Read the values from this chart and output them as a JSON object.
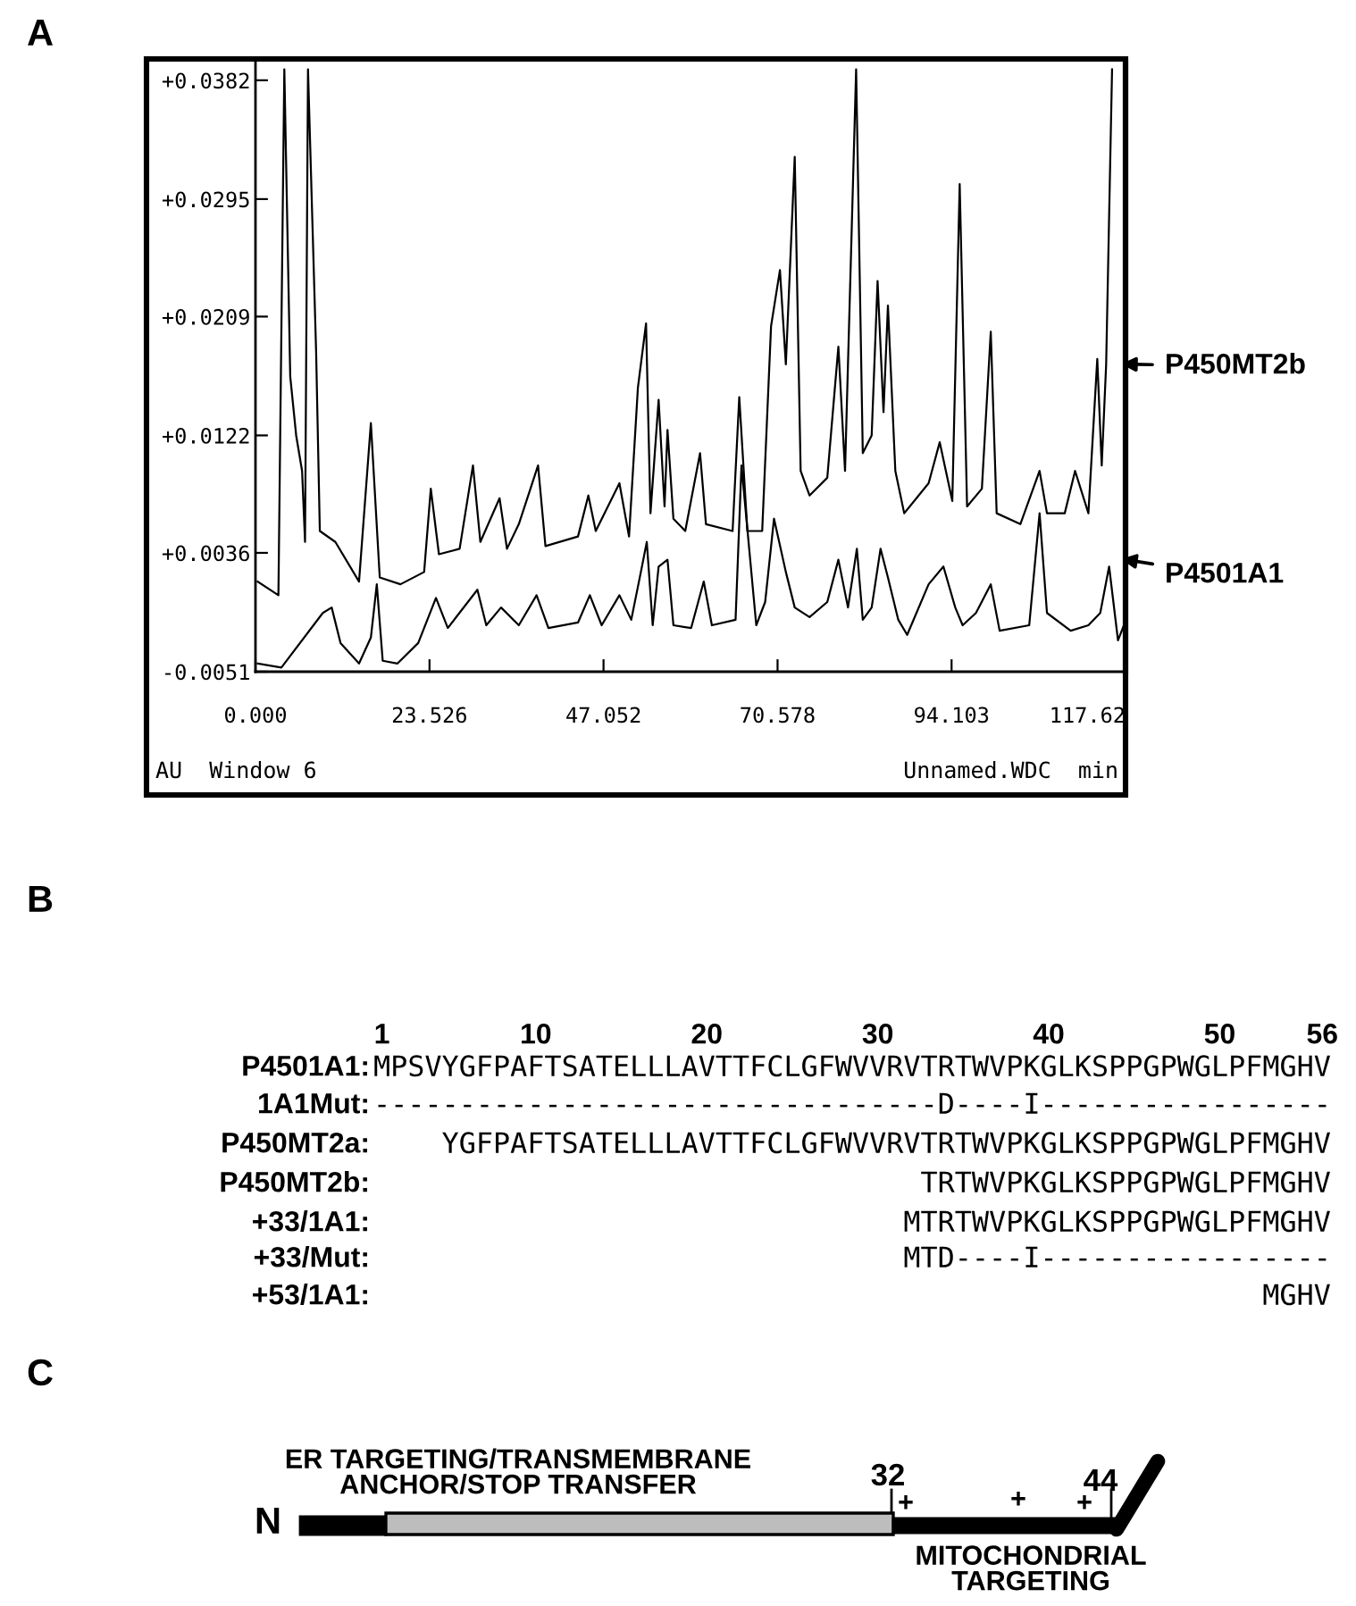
{
  "chart_data": [
    {
      "type": "line",
      "title": "A",
      "legend": "right",
      "xlim": [
        0,
        117.62
      ],
      "ylim": [
        -0.0051,
        0.0395
      ],
      "xticks": [
        {
          "value": 0,
          "label": "0.000"
        },
        23.526,
        47.052,
        70.578,
        94.103,
        117.62
      ],
      "yticks": [
        {
          "value": -0.0051,
          "label": "-0.0051"
        },
        {
          "value": 0.0036,
          "label": "+0.0036"
        },
        {
          "value": 0.0122,
          "label": "+0.0122"
        },
        {
          "value": 0.0209,
          "label": "+0.0209"
        },
        {
          "value": 0.0295,
          "label": "+0.0295"
        },
        {
          "value": 0.0382,
          "label": "+0.0382"
        }
      ],
      "annotations": [
        "AU  Window 6",
        "Unnamed.WDC  min"
      ],
      "series": [
        {
          "name": "P450MT2b",
          "color": "#000000",
          "x": [
            0.3,
            3.1,
            3.9,
            4.7,
            5.5,
            6.3,
            6.7,
            7.1,
            8.2,
            8.7,
            10.8,
            14.0,
            15.6,
            16.8,
            19.6,
            22.8,
            23.7,
            24.8,
            27.6,
            29.4,
            30.4,
            33.0,
            34.0,
            35.6,
            38.2,
            39.2,
            43.6,
            45.0,
            46.0,
            49.2,
            50.5,
            51.7,
            52.8,
            53.4,
            54.5,
            55.3,
            55.7,
            56.5,
            58.1,
            60.1,
            60.9,
            64.5,
            65.4,
            66.5,
            68.5,
            69.7,
            70.9,
            71.7,
            72.9,
            73.7,
            74.9,
            77.3,
            78.8,
            79.7,
            81.2,
            82.1,
            83.3,
            84.1,
            84.9,
            85.5,
            86.5,
            87.7,
            91.0,
            92.5,
            94.2,
            95.2,
            96.2,
            98.2,
            99.4,
            100.2,
            103.4,
            106.0,
            107.0,
            109.4,
            110.8,
            112.6,
            113.8,
            114.4,
            115.0,
            115.8
          ],
          "values": [
            0.0015,
            0.0005,
            0.039,
            0.0165,
            0.0122,
            0.0096,
            0.0044,
            0.039,
            0.0183,
            0.0052,
            0.0044,
            0.0015,
            0.0131,
            0.0018,
            0.0013,
            0.0022,
            0.0083,
            0.0035,
            0.0039,
            0.01,
            0.0044,
            0.0076,
            0.0039,
            0.0057,
            0.01,
            0.0041,
            0.0048,
            0.0078,
            0.0052,
            0.0087,
            0.0048,
            0.0157,
            0.0204,
            0.0065,
            0.0148,
            0.007,
            0.0126,
            0.0061,
            0.0052,
            0.0109,
            0.0057,
            0.0052,
            0.015,
            0.0052,
            0.0052,
            0.0202,
            0.0243,
            0.0174,
            0.0326,
            0.0096,
            0.0078,
            0.0091,
            0.0187,
            0.0096,
            0.039,
            0.0109,
            0.0122,
            0.0235,
            0.0139,
            0.0217,
            0.0096,
            0.0065,
            0.0087,
            0.0117,
            0.0074,
            0.0306,
            0.007,
            0.0083,
            0.0198,
            0.0065,
            0.0057,
            0.0096,
            0.0065,
            0.0065,
            0.0096,
            0.0065,
            0.0178,
            0.01,
            0.0174,
            0.039
          ]
        },
        {
          "name": "P4501A1",
          "color": "#000000",
          "x": [
            0.3,
            3.5,
            9.1,
            10.3,
            11.5,
            14.0,
            15.6,
            16.4,
            17.2,
            19.2,
            22.0,
            24.4,
            26.0,
            30.0,
            31.2,
            33.2,
            35.6,
            38.0,
            39.6,
            43.6,
            45.2,
            46.8,
            49.2,
            50.8,
            52.1,
            52.9,
            53.7,
            54.5,
            55.7,
            56.5,
            58.9,
            60.6,
            61.7,
            64.9,
            65.7,
            67.7,
            68.9,
            70.1,
            71.7,
            72.9,
            74.9,
            77.3,
            78.8,
            80.1,
            81.3,
            82.1,
            83.3,
            84.5,
            85.5,
            86.9,
            88.1,
            91.0,
            93.0,
            94.6,
            95.6,
            97.4,
            99.4,
            100.6,
            104.6,
            106.0,
            107.0,
            110.2,
            112.6,
            114.2,
            115.4,
            116.6,
            117.4
          ],
          "values": [
            -0.0045,
            -0.0048,
            -0.0008,
            -0.0004,
            -0.003,
            -0.0045,
            -0.0026,
            0.0013,
            -0.0043,
            -0.0045,
            -0.003,
            0.0003,
            -0.0019,
            0.0009,
            -0.0017,
            -0.0004,
            -0.0017,
            0.0005,
            -0.0019,
            -0.0015,
            0.0005,
            -0.0017,
            0.0005,
            -0.0013,
            0.0022,
            0.0044,
            -0.0017,
            0.0026,
            0.0031,
            -0.0017,
            -0.0019,
            0.0015,
            -0.0017,
            -0.0013,
            0.01,
            -0.0017,
            0.0,
            0.0061,
            0.0022,
            -0.0004,
            -0.0011,
            0.0,
            0.0031,
            -0.0004,
            0.0039,
            -0.0013,
            -0.0004,
            0.0039,
            0.0018,
            -0.0013,
            -0.0024,
            0.0013,
            0.0026,
            -0.0004,
            -0.0017,
            -0.0008,
            0.0013,
            -0.0021,
            -0.0017,
            0.0065,
            -0.0008,
            -0.0021,
            -0.0017,
            -0.0008,
            0.0026,
            -0.0028,
            -0.0017
          ]
        }
      ]
    },
    {
      "type": "other",
      "title": "B",
      "annotations": [
        "1",
        "10",
        "20",
        "30",
        "40",
        "50",
        "56",
        "P4501A1:",
        "1A1Mut:",
        "P450MT2a:",
        "P450MT2b:",
        "+33/1A1:",
        "+33/Mut:",
        "+53/1A1:",
        "MPSVYGFPAFTSATELLLAVTTFCLGFWVVRVTRTWVPKGLKSPPGPWGLPFMGHV",
        "---------------------------------D----I-----------------",
        "YGFPAFTSATELLLAVTTFCLGFWVVRVTRTWVPKGLKSPPGPWGLPFMGHV",
        "TRTWVPKGLKSPPGPWGLPFMGHV",
        "MTRTWVPKGLKSPPGPWGLPFMGHV",
        "MTD----I-----------------",
        "MGHV"
      ]
    },
    {
      "type": "other",
      "title": "C",
      "annotations": [
        "ER TARGETING/TRANSMEMBRANE\nANCHOR/STOP TRANSFER",
        "N",
        "32",
        "44",
        "+",
        "+",
        "+",
        "MITOCHONDRIAL\nTARGETING"
      ]
    }
  ]
}
